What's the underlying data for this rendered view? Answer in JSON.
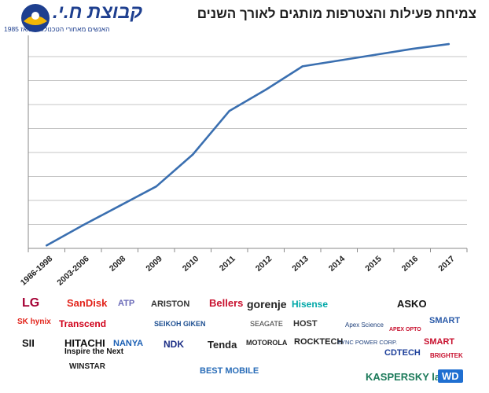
{
  "header": {
    "title": "צמיחת פעילות והצטרפות מותגים לאורך השנים",
    "company": {
      "name": "קבוצת ח.י.",
      "tagline": "האנשים מאחורי הטכנולוגיה מאז 1985"
    }
  },
  "chart_data": {
    "type": "line",
    "title": "צמיחת פעילות והצטרפות מותגים לאורך השנים",
    "xlabel": "",
    "ylabel": "",
    "categories": [
      "1986-1998",
      "2003-2006",
      "2008",
      "2009",
      "2010",
      "2011",
      "2012",
      "2013",
      "2014",
      "2015",
      "2016",
      "2017"
    ],
    "series": [
      {
        "values": [
          0.3,
          2.4,
          4.4,
          6.4,
          9.7,
          14.2,
          16.4,
          18.8,
          19.4,
          20.0,
          20.6,
          21.1
        ]
      }
    ],
    "ylim": [
      0,
      22
    ],
    "y_gridlines": 7,
    "y_tick_labels_shown": false,
    "grid": true,
    "legend": "none",
    "line_color": "#3a6fb0",
    "grid_color": "#c4c4c4"
  },
  "brand_logos": [
    {
      "text": "LG",
      "color": "#a50034"
    },
    {
      "text": "SanDisk",
      "color": "#e2231a"
    },
    {
      "text": "ATP",
      "color": "#6a6ab8"
    },
    {
      "text": "ARISTON",
      "color": "#333333"
    },
    {
      "text": "Bellers",
      "color": "#c8102e"
    },
    {
      "text": "gorenje",
      "color": "#222222"
    },
    {
      "text": "Hisense",
      "color": "#00a8a8"
    },
    {
      "text": "ASKO",
      "color": "#111111"
    },
    {
      "text": "SK hynix",
      "color": "#e2231a"
    },
    {
      "text": "Transcend",
      "color": "#d0021b"
    },
    {
      "text": "SEIKOH GIKEN",
      "color": "#1d4f91"
    },
    {
      "text": "SEAGATE",
      "color": "#333333"
    },
    {
      "text": "HOST",
      "color": "#333333"
    },
    {
      "text": "Apex Science",
      "color": "#1d3f7a"
    },
    {
      "text": "SMART",
      "color": "#2a5aa8"
    },
    {
      "text": "SII",
      "color": "#111111"
    },
    {
      "text": "HITACHI",
      "color": "#111111"
    },
    {
      "text": "Inspire the Next",
      "color": "#111111"
    },
    {
      "text": "NANYA",
      "color": "#1a5fb4"
    },
    {
      "text": "NDK",
      "color": "#1d2f86"
    },
    {
      "text": "Tenda",
      "color": "#222222"
    },
    {
      "text": "MOTOROLA",
      "color": "#222222"
    },
    {
      "text": "ROCKTECH",
      "color": "#222222"
    },
    {
      "text": "SYNC POWER CORP.",
      "color": "#1d3f7a"
    },
    {
      "text": "APEX OPTO",
      "color": "#c8102e"
    },
    {
      "text": "CDTECH",
      "color": "#1d3f9a"
    },
    {
      "text": "SMART",
      "color": "#c8102e"
    },
    {
      "text": "BRIGHTEK",
      "color": "#c8102e"
    },
    {
      "text": "WINSTAR",
      "color": "#222222"
    },
    {
      "text": "BEST MOBILE",
      "color": "#2a6db8"
    },
    {
      "text": "KASPERSKY lab",
      "color": "#1c7a5a"
    },
    {
      "text": "WD",
      "color": "#ffffff"
    }
  ]
}
